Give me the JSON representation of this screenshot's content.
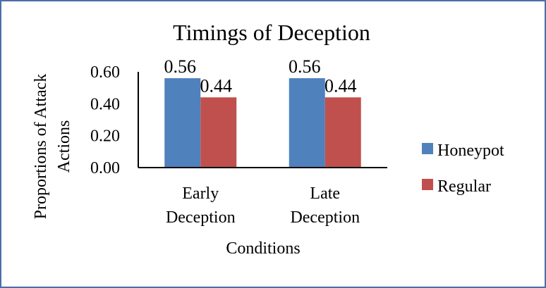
{
  "chart_data": {
    "type": "bar",
    "title": "Timings of Deception",
    "xlabel": "Conditions",
    "ylabel_lines": [
      "Proportions of Attack",
      "Actions"
    ],
    "categories": [
      [
        "Early",
        "Deception"
      ],
      [
        "Late",
        "Deception"
      ]
    ],
    "series": [
      {
        "name": "Honeypot",
        "color": "#4f81bd",
        "values": [
          0.56,
          0.56
        ]
      },
      {
        "name": "Regular",
        "color": "#c0504d",
        "values": [
          0.44,
          0.44
        ]
      }
    ],
    "data_labels": [
      [
        "0.56",
        "0.56"
      ],
      [
        "0.44",
        "0.44"
      ]
    ],
    "yticks": [
      0,
      0.2,
      0.4,
      0.6
    ],
    "ytick_labels": [
      "0.00",
      "0.20",
      "0.40",
      "0.60"
    ],
    "ylim": [
      0,
      0.6
    ],
    "legend_position": "right",
    "grid": false
  }
}
